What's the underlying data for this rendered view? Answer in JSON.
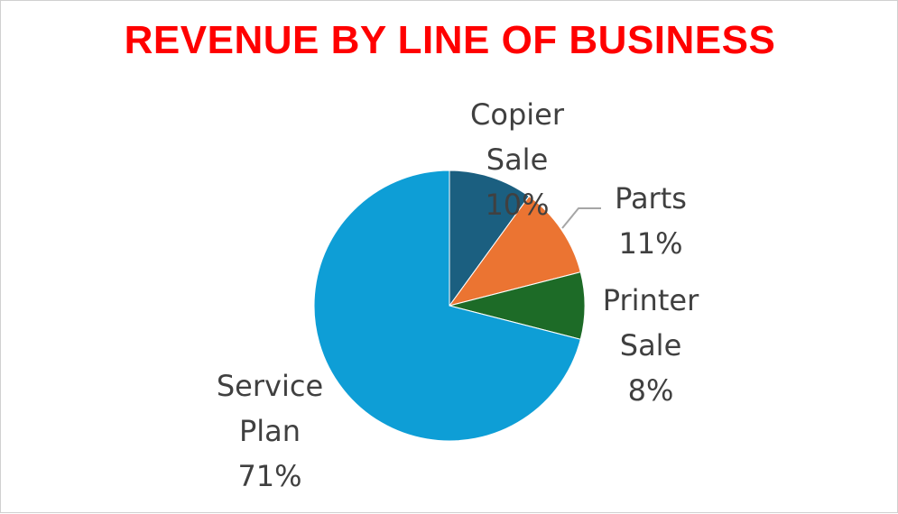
{
  "chart_data": {
    "type": "pie",
    "title": "REVENUE BY LINE OF BUSINESS",
    "slices": [
      {
        "name": "Copier",
        "name2": "Sale",
        "pct_label": "10%",
        "value": 10,
        "color": "#1b5f80"
      },
      {
        "name": "Parts",
        "name2": "",
        "pct_label": "11%",
        "value": 11,
        "color": "#eb7432"
      },
      {
        "name": "Printer",
        "name2": "Sale",
        "pct_label": "8%",
        "value": 8,
        "color": "#1d6b27"
      },
      {
        "name": "Service",
        "name2": "Plan",
        "pct_label": "71%",
        "value": 71,
        "color": "#0e9ed6"
      }
    ],
    "start_angle_deg": 0,
    "direction": "clockwise",
    "label_color": "#404040",
    "leader_line_color": "#a6a6a6",
    "legend": "none"
  },
  "style": {
    "title_color": "#ff0000",
    "background": "#ffffff"
  }
}
